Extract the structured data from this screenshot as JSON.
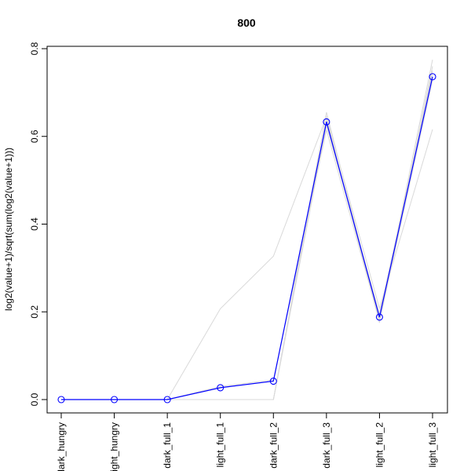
{
  "chart_data": {
    "type": "line",
    "title": "800",
    "xlabel": "",
    "ylabel": "log2(value+1)/sqrt(sum(log2(value+1)))",
    "categories": [
      "dark_hungry",
      "light_hungry",
      "dark_full_1",
      "light_full_1",
      "dark_full_2",
      "dark_full_3",
      "light_full_2",
      "light_full_3"
    ],
    "ylim": [
      0,
      0.8
    ],
    "yticks": [
      "0.0",
      "0.2",
      "0.4",
      "0.6",
      "0.8"
    ],
    "grid": false,
    "legend": "none",
    "highlight_series": {
      "values": [
        0.0,
        0.0,
        0.0,
        0.027,
        0.042,
        0.633,
        0.188,
        0.736
      ],
      "color": "#0000ff",
      "marker": "open-circle"
    },
    "background_series": [
      {
        "values": [
          0.0,
          0.0,
          0.0,
          0.207,
          0.327,
          0.645,
          0.208,
          0.616
        ]
      },
      {
        "values": [
          0.0,
          0.0,
          0.0,
          0.0,
          0.0,
          0.655,
          0.18,
          0.775
        ]
      },
      {
        "values": [
          0.0,
          0.0,
          0.0,
          0.0,
          0.0,
          0.64,
          0.175,
          0.76
        ]
      },
      {
        "values": [
          0.0,
          0.0,
          0.0,
          0.0,
          0.0,
          0.625,
          0.195,
          0.745
        ]
      },
      {
        "values": [
          0.0,
          0.0,
          0.0,
          0.0,
          0.0,
          0.635,
          0.185,
          0.75
        ]
      },
      {
        "values": [
          0.0,
          0.0,
          0.0,
          0.03,
          0.045,
          0.615,
          0.178,
          0.728
        ]
      }
    ],
    "background_color": "#d9d9d9"
  }
}
